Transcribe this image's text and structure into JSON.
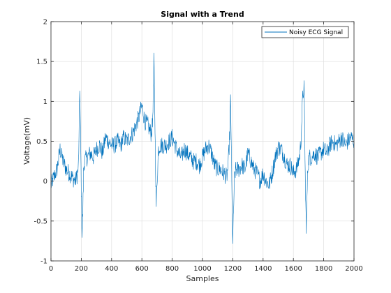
{
  "chart_data": {
    "type": "line",
    "title": "Signal with a Trend",
    "xlabel": "Samples",
    "ylabel": "Voltage(mV)",
    "xlim": [
      0,
      2000
    ],
    "ylim": [
      -1,
      2
    ],
    "xticks": [
      0,
      200,
      400,
      600,
      800,
      1000,
      1200,
      1400,
      1600,
      1800,
      2000
    ],
    "yticks": [
      -1,
      -0.5,
      0,
      0.5,
      1,
      1.5,
      2
    ],
    "grid": true,
    "legend_position": "top-right",
    "colors": {
      "series": "#0072BD",
      "grid": "#dfdfdf",
      "axes": "#262626"
    },
    "series": [
      {
        "name": "Noisy ECG Signal",
        "x": [
          0,
          20,
          40,
          60,
          80,
          100,
          120,
          140,
          160,
          170,
          180,
          185,
          190,
          195,
          200,
          205,
          210,
          215,
          220,
          240,
          260,
          280,
          300,
          320,
          340,
          360,
          380,
          400,
          420,
          440,
          460,
          480,
          500,
          520,
          540,
          560,
          580,
          600,
          620,
          640,
          660,
          670,
          675,
          680,
          685,
          690,
          695,
          700,
          710,
          720,
          740,
          760,
          780,
          800,
          820,
          840,
          860,
          880,
          900,
          920,
          940,
          960,
          980,
          1000,
          1020,
          1040,
          1060,
          1080,
          1100,
          1120,
          1140,
          1160,
          1170,
          1180,
          1185,
          1190,
          1195,
          1200,
          1205,
          1210,
          1215,
          1220,
          1240,
          1260,
          1280,
          1300,
          1320,
          1340,
          1360,
          1380,
          1400,
          1420,
          1440,
          1460,
          1480,
          1500,
          1520,
          1540,
          1560,
          1580,
          1600,
          1620,
          1640,
          1650,
          1660,
          1670,
          1675,
          1680,
          1685,
          1690,
          1695,
          1700,
          1705,
          1710,
          1720,
          1740,
          1760,
          1780,
          1800,
          1820,
          1840,
          1860,
          1880,
          1900,
          1920,
          1940,
          1960,
          1980,
          2000
        ],
        "y": [
          -0.05,
          0.05,
          0.15,
          0.4,
          0.25,
          0.15,
          0.1,
          0.05,
          0.0,
          0.05,
          0.15,
          0.5,
          1.2,
          0.6,
          -0.1,
          -0.65,
          -0.4,
          0.1,
          0.25,
          0.3,
          0.35,
          0.3,
          0.4,
          0.45,
          0.35,
          0.55,
          0.5,
          0.45,
          0.45,
          0.5,
          0.45,
          0.55,
          0.5,
          0.55,
          0.6,
          0.7,
          0.8,
          0.95,
          0.75,
          0.7,
          0.6,
          0.7,
          1.1,
          1.5,
          0.9,
          0.2,
          -0.3,
          0.0,
          0.4,
          0.45,
          0.45,
          0.45,
          0.5,
          0.55,
          0.45,
          0.35,
          0.3,
          0.4,
          0.35,
          0.3,
          0.25,
          0.25,
          0.2,
          0.3,
          0.4,
          0.45,
          0.35,
          0.2,
          0.15,
          0.15,
          0.1,
          0.05,
          0.2,
          0.6,
          1.0,
          0.5,
          -0.3,
          -0.75,
          -0.4,
          0.0,
          0.1,
          0.15,
          0.15,
          0.2,
          0.15,
          0.35,
          0.25,
          0.15,
          0.1,
          0.0,
          0.1,
          0.0,
          -0.05,
          0.1,
          0.3,
          0.42,
          0.4,
          0.3,
          0.2,
          0.2,
          0.1,
          0.15,
          0.3,
          0.5,
          1.0,
          1.2,
          0.6,
          -0.2,
          -0.55,
          -0.2,
          0.15,
          0.25,
          0.3,
          0.3,
          0.3,
          0.35,
          0.3,
          0.35,
          0.4,
          0.35,
          0.45,
          0.5,
          0.45,
          0.5,
          0.55,
          0.45,
          0.5,
          0.55,
          0.5
        ]
      }
    ]
  }
}
